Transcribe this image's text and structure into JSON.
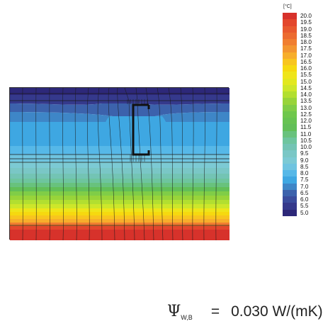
{
  "legend": {
    "unit": "[°C]",
    "ticks": [
      "20.0",
      "19.5",
      "19.0",
      "18.5",
      "18.0",
      "17.5",
      "17.0",
      "16.5",
      "16.0",
      "15.5",
      "15.0",
      "14.5",
      "14.0",
      "13.5",
      "13.0",
      "12.5",
      "12.0",
      "11.5",
      "11.0",
      "10.5",
      "10.0",
      "9.5",
      "9.0",
      "8.5",
      "8.0",
      "7.5",
      "7.0",
      "6.5",
      "6.0",
      "5.5",
      "5.0"
    ],
    "colors": [
      "#d7322b",
      "#e3472c",
      "#e8592e",
      "#ec6b30",
      "#f07e30",
      "#f39530",
      "#f7ae2b",
      "#f8c51e",
      "#f6d90f",
      "#efe51a",
      "#e2e81f",
      "#cde72a",
      "#b2df30",
      "#98d43a",
      "#80cd47",
      "#6fc74c",
      "#67c352",
      "#62bf58",
      "#68c27d",
      "#6ec59e",
      "#73c4b4",
      "#7ac7c6",
      "#7ccad4",
      "#6fc4e0",
      "#56b8e8",
      "#3ea7e2",
      "#3e86c7",
      "#3c62ac",
      "#3a4c9d",
      "#35398c",
      "#2d2879"
    ]
  },
  "formula": {
    "symbol": "Ψ",
    "subscript": "W,B",
    "equals": "=",
    "value": "0.030 W/(mK)"
  }
}
